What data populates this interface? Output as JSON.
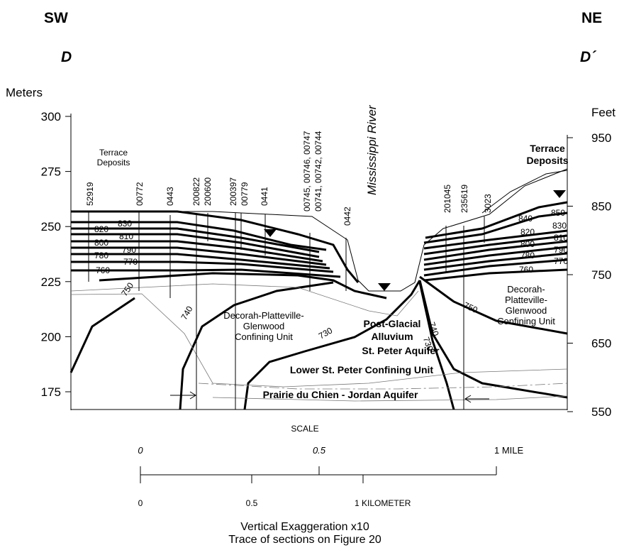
{
  "header": {
    "left_direction": "SW",
    "right_direction": "NE",
    "left_section": "D",
    "right_section": "D´"
  },
  "left_axis": {
    "label": "Meters",
    "ticks": [
      300,
      275,
      250,
      225,
      200,
      175
    ]
  },
  "right_axis": {
    "label": "Feet",
    "ticks": [
      950,
      850,
      750,
      650,
      550
    ]
  },
  "wells": [
    "52919",
    "00772",
    "0443",
    "200822",
    "200600",
    "200397",
    "00779",
    "0441",
    "00745, 00746, 00747",
    "00741, 00742, 00744",
    "0442",
    "201045",
    "235619",
    "3023"
  ],
  "river": "Mississippi River",
  "left_contours": [
    830,
    820,
    810,
    800,
    790,
    780,
    770,
    760,
    750,
    740,
    730
  ],
  "right_contours": [
    850,
    840,
    830,
    820,
    810,
    800,
    790,
    780,
    770,
    760,
    750,
    740,
    730
  ],
  "units": {
    "left_terrace": [
      "Terrace",
      "Deposits"
    ],
    "right_terrace": [
      "Terrace",
      "Deposits"
    ],
    "left_confining": [
      "Decorah-Platteville-",
      "Glenwood",
      "Confining Unit"
    ],
    "right_confining": [
      "Decorah-",
      "Platteville-",
      "Glenwood",
      "Confining Unit"
    ],
    "alluvium": [
      "Post-Glacial",
      "Alluvium"
    ],
    "st_peter": "St. Peter Aquifer",
    "lower_st_peter": "Lower St. Peter Confining Unit",
    "prairie": "Prairie du Chien - Jordan Aquifer"
  },
  "scale": {
    "title": "SCALE",
    "miles": [
      "0",
      "0.5",
      "1 MILE"
    ],
    "kilometers": [
      "0",
      "0.5",
      "1 KILOMETER"
    ]
  },
  "footer": [
    "Vertical Exaggeration x10",
    "Trace of sections on Figure 20"
  ]
}
